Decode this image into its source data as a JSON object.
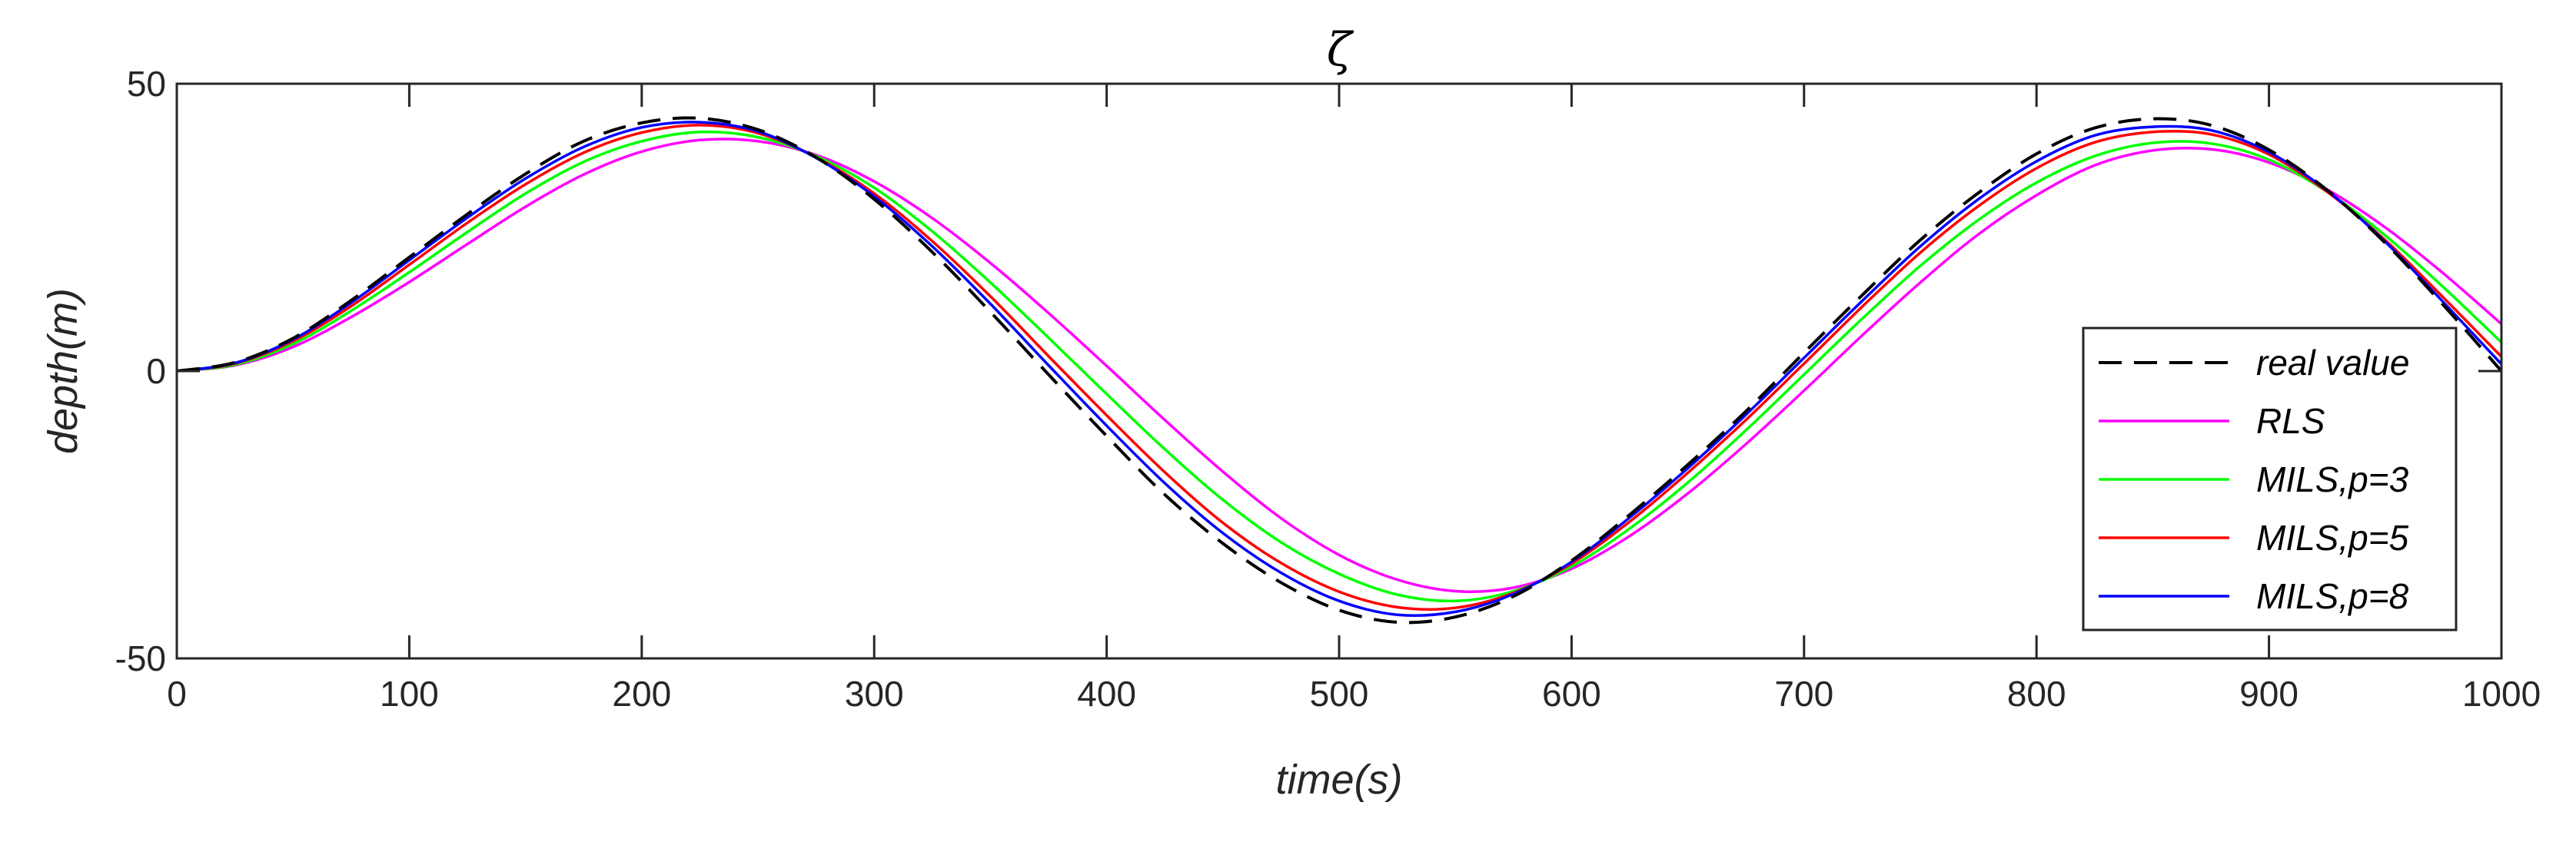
{
  "chart_data": {
    "type": "line",
    "title": "ζ",
    "xlabel": "time(s)",
    "ylabel": "depth(m)",
    "xlim": [
      0,
      1000
    ],
    "ylim": [
      -50,
      50
    ],
    "xticks": [
      0,
      100,
      200,
      300,
      400,
      500,
      600,
      700,
      800,
      900,
      1000
    ],
    "yticks": [
      -50,
      0,
      50
    ],
    "xtick_labels": [
      "0",
      "100",
      "200",
      "300",
      "400",
      "500",
      "600",
      "700",
      "800",
      "900",
      "1000"
    ],
    "ytick_labels": [
      "-50",
      "0",
      "50"
    ],
    "grid": false,
    "legend_position": "lower-right",
    "x": [
      0,
      25,
      50,
      75,
      100,
      125,
      150,
      175,
      200,
      225,
      250,
      275,
      300,
      325,
      350,
      375,
      400,
      425,
      450,
      475,
      500,
      525,
      550,
      575,
      600,
      625,
      650,
      675,
      700,
      725,
      750,
      775,
      800,
      825,
      850,
      875,
      900,
      925,
      950,
      975,
      1000
    ],
    "series": [
      {
        "name": "real value",
        "color": "#000000",
        "dash": "dashed",
        "values": [
          0.0,
          1.5,
          5.7,
          12.3,
          19.8,
          27.3,
          34.3,
          40.0,
          43.2,
          44.0,
          42.0,
          37.2,
          29.9,
          20.7,
          10.3,
          -0.6,
          -11.3,
          -21.5,
          -30.0,
          -36.8,
          -41.6,
          -43.7,
          -42.8,
          -39.2,
          -33.0,
          -25.0,
          -16.3,
          -7.0,
          3.2,
          13.2,
          22.8,
          31.0,
          37.8,
          42.3,
          43.9,
          42.8,
          38.5,
          31.5,
          22.3,
          11.5,
          0.0
        ]
      },
      {
        "name": "RLS",
        "color": "#ff00ff",
        "dash": "solid",
        "values": [
          0.0,
          1.0,
          4.2,
          9.4,
          15.5,
          22.1,
          28.6,
          34.2,
          38.2,
          40.2,
          40.0,
          37.6,
          33.0,
          26.6,
          18.8,
          10.1,
          0.9,
          -8.5,
          -17.5,
          -25.6,
          -32.0,
          -36.3,
          -38.3,
          -37.7,
          -34.4,
          -28.7,
          -21.3,
          -12.7,
          -3.4,
          6.2,
          15.4,
          23.8,
          30.6,
          35.8,
          38.4,
          38.6,
          36.3,
          31.6,
          25.0,
          17.0,
          8.2
        ]
      },
      {
        "name": "MILS,p=3",
        "color": "#00ff00",
        "dash": "solid",
        "values": [
          0.0,
          1.1,
          4.7,
          10.5,
          17.2,
          24.2,
          30.9,
          36.4,
          40.0,
          41.6,
          40.7,
          37.4,
          31.9,
          24.3,
          15.4,
          5.8,
          -4.0,
          -13.6,
          -22.4,
          -29.8,
          -35.3,
          -38.9,
          -40.0,
          -38.3,
          -34.0,
          -27.4,
          -19.4,
          -10.3,
          -0.6,
          9.1,
          18.3,
          26.3,
          32.8,
          37.4,
          39.7,
          39.6,
          36.8,
          31.2,
          23.6,
          14.6,
          5.0
        ]
      },
      {
        "name": "MILS,p=5",
        "color": "#ff0000",
        "dash": "solid",
        "values": [
          0.0,
          1.3,
          5.2,
          11.3,
          18.5,
          25.8,
          32.5,
          38.0,
          41.5,
          42.8,
          41.4,
          37.2,
          30.9,
          22.6,
          13.0,
          2.6,
          -7.7,
          -17.6,
          -26.4,
          -33.4,
          -38.4,
          -41.1,
          -41.2,
          -38.6,
          -33.5,
          -26.2,
          -17.7,
          -8.5,
          1.3,
          11.2,
          20.6,
          28.7,
          35.3,
          39.8,
          41.6,
          41.2,
          37.7,
          31.2,
          22.8,
          12.8,
          2.5
        ]
      },
      {
        "name": "MILS,p=8",
        "color": "#0000ff",
        "dash": "solid",
        "values": [
          0.0,
          1.4,
          5.5,
          11.9,
          19.3,
          26.7,
          33.5,
          39.0,
          42.4,
          43.3,
          41.7,
          37.1,
          30.4,
          21.7,
          11.7,
          1.0,
          -9.5,
          -19.5,
          -28.2,
          -35.1,
          -40.0,
          -42.4,
          -41.9,
          -38.8,
          -33.2,
          -25.5,
          -16.9,
          -7.6,
          2.3,
          12.2,
          21.7,
          29.9,
          36.5,
          41.0,
          42.5,
          41.9,
          38.1,
          31.4,
          22.5,
          12.0,
          1.2
        ]
      }
    ]
  }
}
